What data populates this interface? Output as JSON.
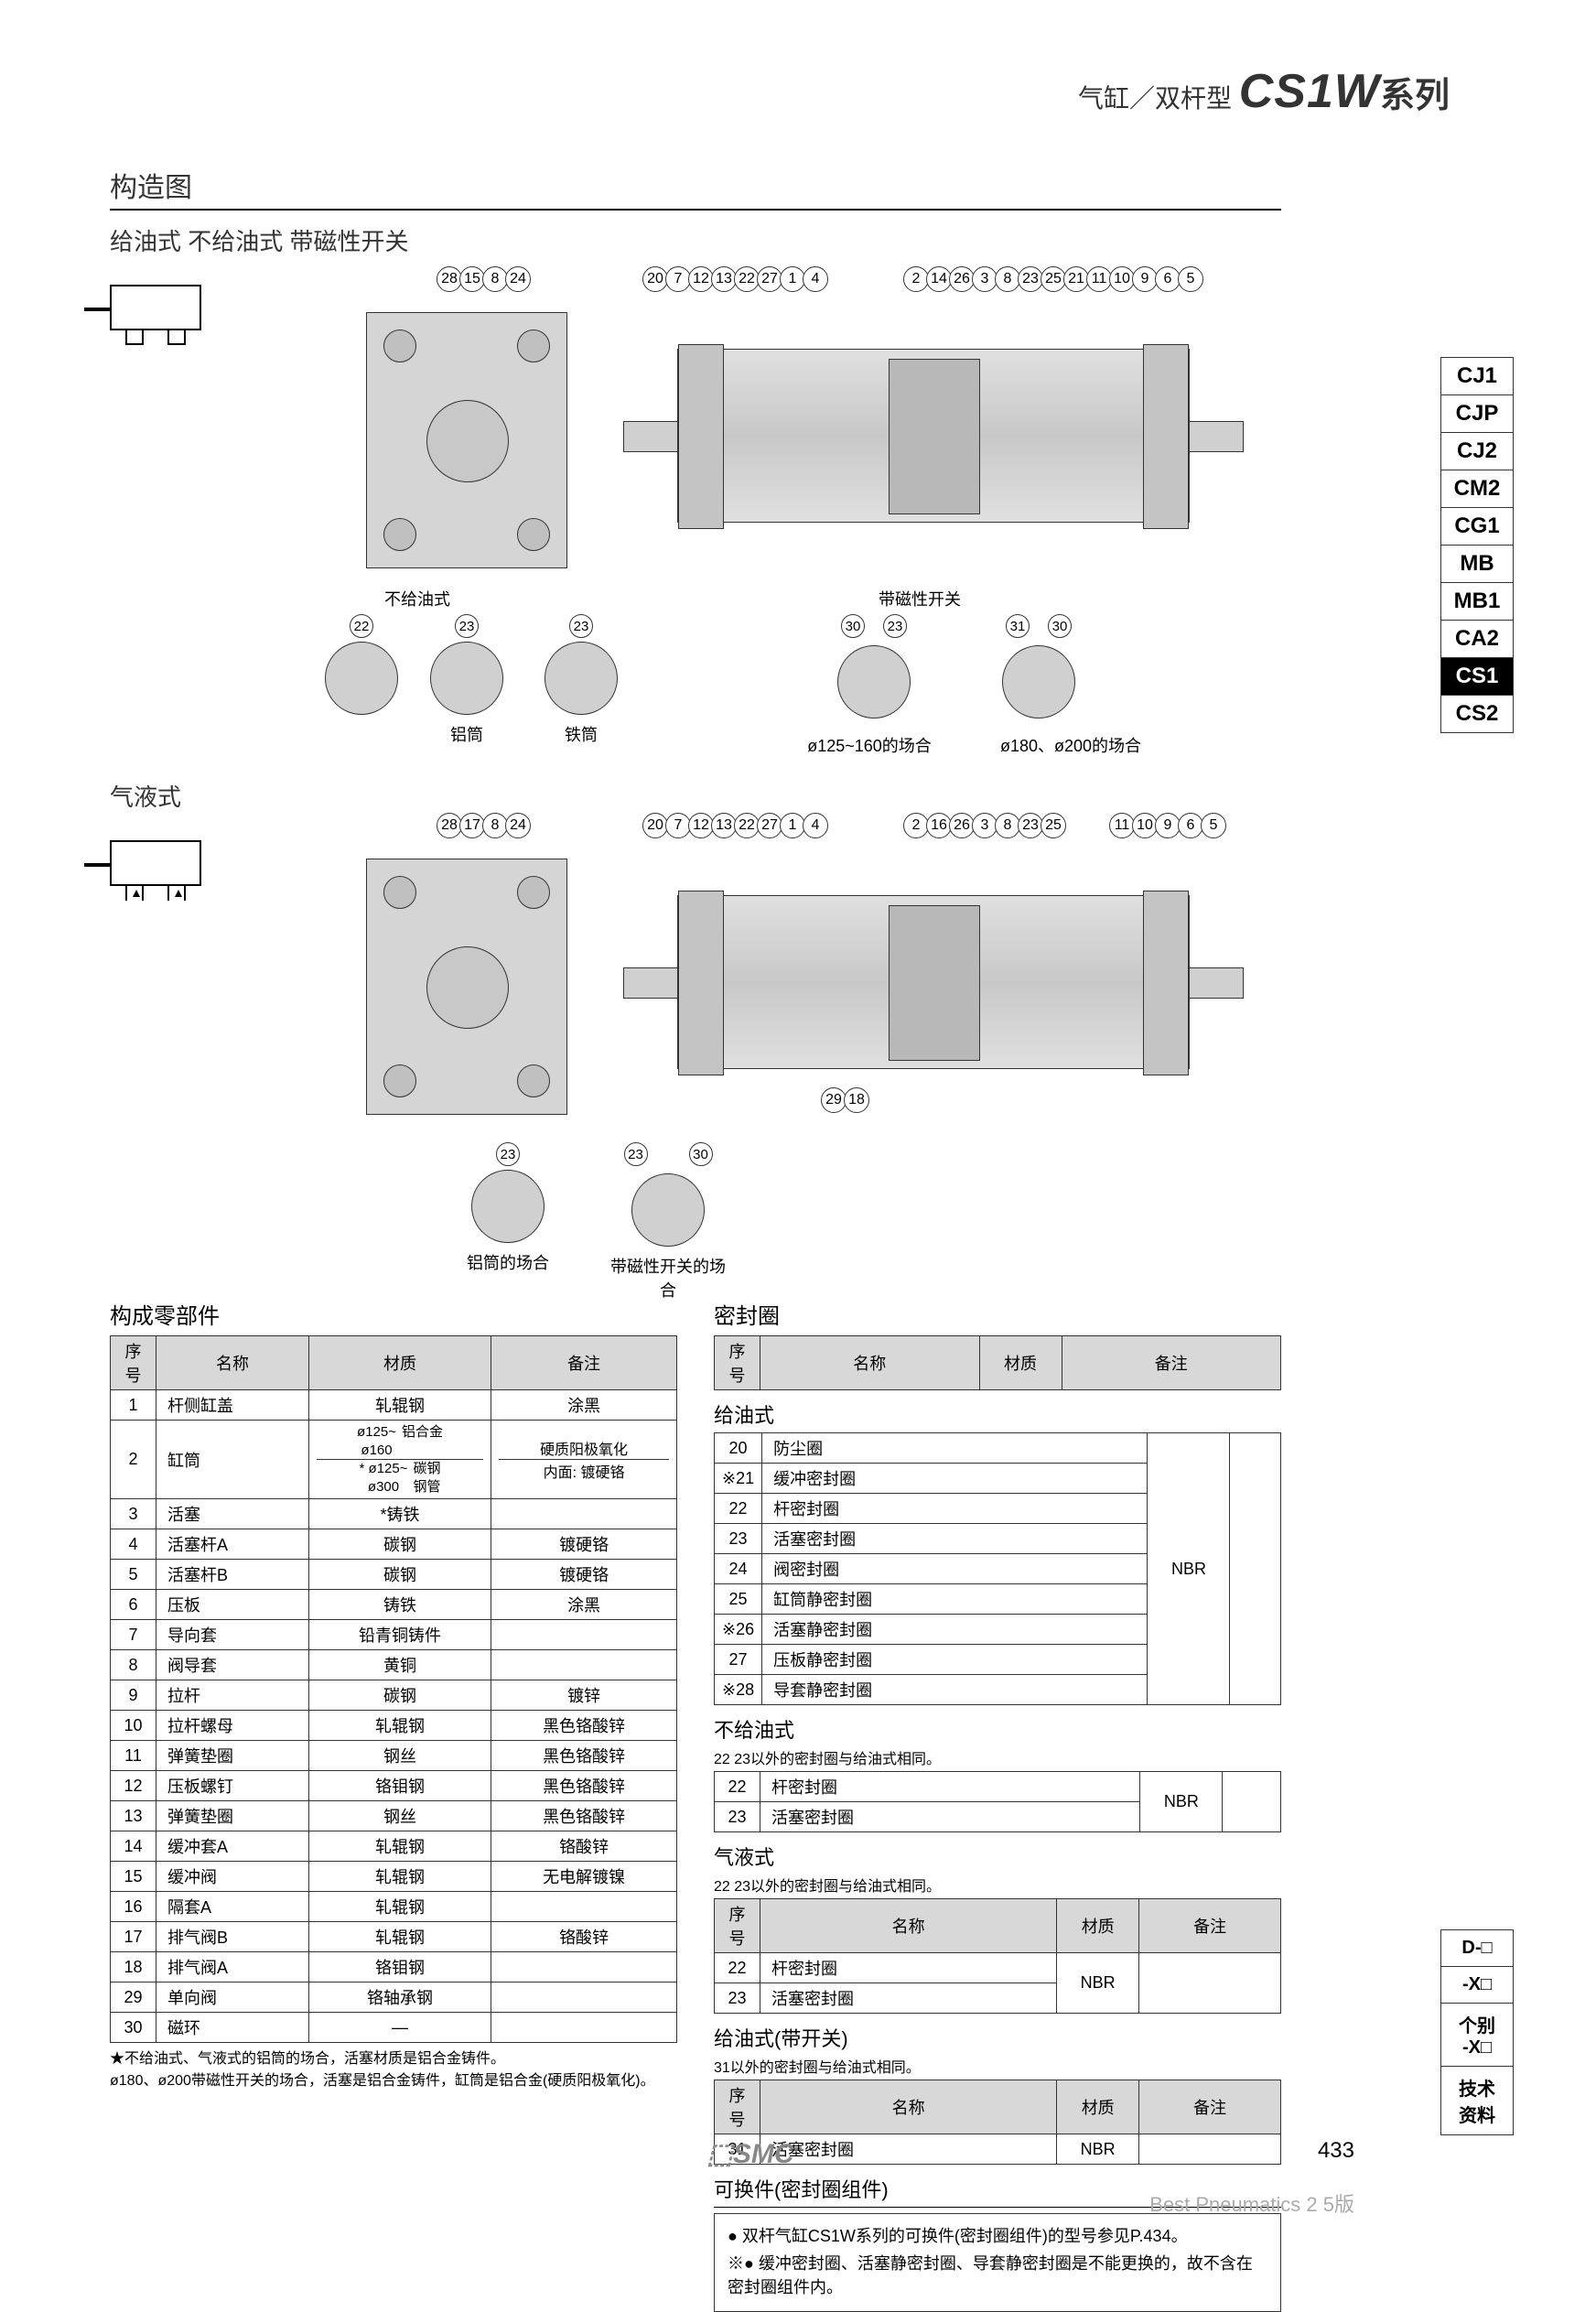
{
  "header": {
    "prefix": "气缸／双杆型",
    "series": "CS1W",
    "suffix": "系列"
  },
  "section_title": "构造图",
  "variant_labels": "给油式  不给油式  带磁性开关",
  "variant_hydraulic": "气液式",
  "diagram_captions": {
    "non_lube": "不给油式",
    "with_switch": "带磁性开关",
    "alu_tube": "铝筒",
    "iron_tube": "铁筒",
    "case_125_160": "ø125~160的场合",
    "case_180_200": "ø180、ø200的场合",
    "alu_tube_case": "铝筒的场合",
    "switch_case": "带磁性开关的场合"
  },
  "callouts": {
    "top_a": [
      "28",
      "15",
      "8",
      "24"
    ],
    "top_b": [
      "20",
      "7",
      "12",
      "13",
      "22",
      "27",
      "1",
      "4"
    ],
    "top_c": [
      "2",
      "14",
      "26",
      "3",
      "8",
      "23",
      "25",
      "21",
      "11",
      "10",
      "9",
      "6",
      "5"
    ],
    "hy_a": [
      "28",
      "17",
      "8",
      "24"
    ],
    "hy_b": [
      "20",
      "7",
      "12",
      "13",
      "22",
      "27",
      "1",
      "4"
    ],
    "hy_c": [
      "2",
      "16",
      "26",
      "3",
      "8",
      "23",
      "25"
    ],
    "hy_d": [
      "11",
      "10",
      "9",
      "6",
      "5"
    ],
    "hy_bottom": [
      "29",
      "18"
    ],
    "detail_22": "22",
    "detail_23": "23",
    "detail_30_23": [
      "30",
      "23"
    ],
    "detail_31_30": [
      "31",
      "30"
    ],
    "detail_23_30": [
      "23",
      "30"
    ]
  },
  "parts_table": {
    "title": "构成零部件",
    "headers": [
      "序号",
      "名称",
      "材质",
      "备注"
    ],
    "rows": [
      [
        "1",
        "杆侧缸盖",
        "轧辊钢",
        "涂黑"
      ],
      [
        "2",
        "缸筒",
        "ø125~\nø160  铝合金\n* ø125~\nø300  碳钢钢管",
        "硬质阳极氧化\n内面: 镀硬铬"
      ],
      [
        "3",
        "活塞",
        "*铸铁",
        ""
      ],
      [
        "4",
        "活塞杆A",
        "碳钢",
        "镀硬铬"
      ],
      [
        "5",
        "活塞杆B",
        "碳钢",
        "镀硬铬"
      ],
      [
        "6",
        "压板",
        "铸铁",
        "涂黑"
      ],
      [
        "7",
        "导向套",
        "铅青铜铸件",
        ""
      ],
      [
        "8",
        "阀导套",
        "黄铜",
        ""
      ],
      [
        "9",
        "拉杆",
        "碳钢",
        "镀锌"
      ],
      [
        "10",
        "拉杆螺母",
        "轧辊钢",
        "黑色铬酸锌"
      ],
      [
        "11",
        "弹簧垫圈",
        "钢丝",
        "黑色铬酸锌"
      ],
      [
        "12",
        "压板螺钉",
        "铬钼钢",
        "黑色铬酸锌"
      ],
      [
        "13",
        "弹簧垫圈",
        "钢丝",
        "黑色铬酸锌"
      ],
      [
        "14",
        "缓冲套A",
        "轧辊钢",
        "铬酸锌"
      ],
      [
        "15",
        "缓冲阀",
        "轧辊钢",
        "无电解镀镍"
      ],
      [
        "16",
        "隔套A",
        "轧辊钢",
        ""
      ],
      [
        "17",
        "排气阀B",
        "轧辊钢",
        "铬酸锌"
      ],
      [
        "18",
        "排气阀A",
        "铬钼钢",
        ""
      ],
      [
        "29",
        "单向阀",
        "铬轴承钢",
        ""
      ],
      [
        "30",
        "磁环",
        "—",
        ""
      ]
    ],
    "note": "★不给油式、气液式的铝筒的场合，活塞材质是铝合金铸件。\nø180、ø200带磁性开关的场合，活塞是铝合金铸件，缸筒是铝合金(硬质阳极氧化)。"
  },
  "seal_section": {
    "title": "密封圈",
    "headers": [
      "序号",
      "名称",
      "材质",
      "备注"
    ],
    "lube": {
      "title": "给油式",
      "rows": [
        [
          "20",
          "防尘圈"
        ],
        [
          "※21",
          "缓冲密封圈"
        ],
        [
          "22",
          "杆密封圈"
        ],
        [
          "23",
          "活塞密封圈"
        ],
        [
          "24",
          "阀密封圈"
        ],
        [
          "25",
          "缸筒静密封圈"
        ],
        [
          "※26",
          "活塞静密封圈"
        ],
        [
          "27",
          "压板静密封圈"
        ],
        [
          "※28",
          "导套静密封圈"
        ]
      ],
      "material": "NBR"
    },
    "nonlube": {
      "title": "不给油式",
      "note": "22 23以外的密封圈与给油式相同。",
      "rows": [
        [
          "22",
          "杆密封圈"
        ],
        [
          "23",
          "活塞密封圈"
        ]
      ],
      "material": "NBR"
    },
    "hydraulic": {
      "title": "气液式",
      "note": "22 23以外的密封圈与给油式相同。",
      "rows": [
        [
          "22",
          "杆密封圈"
        ],
        [
          "23",
          "活塞密封圈"
        ]
      ],
      "material": "NBR"
    },
    "lube_switch": {
      "title": "给油式(带开关)",
      "note": "31以外的密封圈与给油式相同。",
      "rows": [
        [
          "31",
          "活塞密封圈"
        ]
      ],
      "material": "NBR"
    }
  },
  "replaceable": {
    "title": "可换件(密封圈组件)",
    "line1": "● 双杆气缸CS1W系列的可换件(密封圈组件)的型号参见P.434。",
    "line2": "※● 缓冲密封圈、活塞静密封圈、导套静密封圈是不能更换的，故不含在密封圈组件内。"
  },
  "side_nav": [
    "CJ1",
    "CJP",
    "CJ2",
    "CM2",
    "CG1",
    "MB",
    "MB1",
    "CA2",
    "CS1",
    "CS2"
  ],
  "side_nav_active": "CS1",
  "side_nav2": [
    "D-□",
    "-X□",
    "个别\n-X□",
    "技术\n资料"
  ],
  "footer": {
    "logo": "SMC",
    "page": "433",
    "edition": "Best Pneumatics 2 5版"
  }
}
